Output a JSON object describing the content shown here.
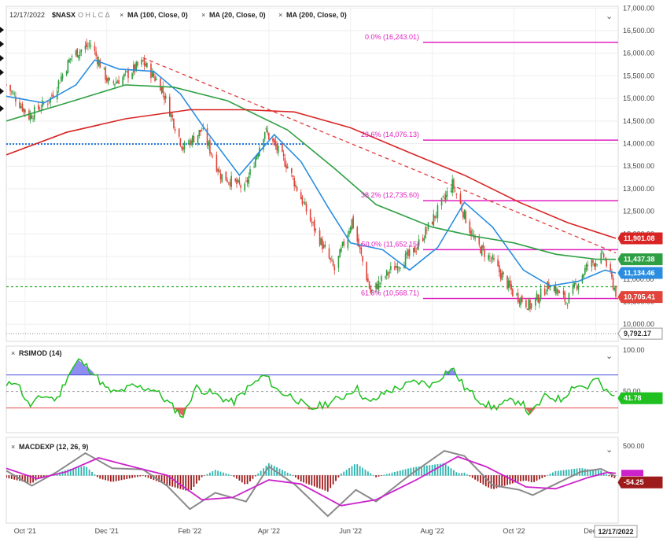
{
  "header": {
    "date": "12/17/2022",
    "symbol": "$NASX",
    "ohlc": "O H L C Δ",
    "studies": [
      "MA (100, Close, 0)",
      "MA (20, Close, 0)",
      "MA (200, Close, 0)"
    ],
    "collapse": "⌄"
  },
  "colors": {
    "candle_up": "#2e9e3e",
    "candle_down": "#e0443a",
    "ma100": "#2ea043",
    "ma20": "#2a8de0",
    "ma200": "#d92424",
    "fib": "#e020c0",
    "trend": "#e03a3a",
    "rsi": "#1fc01f",
    "macd": "#8a8a8a",
    "signal": "#cc22cc",
    "hist_up": "#2ab5b0",
    "hist_down": "#9e1b1b"
  },
  "chart_data": [
    {
      "type": "candlestick",
      "title": "$NASX",
      "x_ticks": [
        "Oct '21",
        "Dec '21",
        "Feb '22",
        "Apr '22",
        "Jun '22",
        "Aug '22",
        "Oct '22",
        "Dec '22"
      ],
      "y_ticks": [
        "17,000.00",
        "16,500.00",
        "16,000.00",
        "15,500.00",
        "15,000.00",
        "14,500.00",
        "14,000.00",
        "13,500.00",
        "13,000.00",
        "12,500.00",
        "12,000.00",
        "11,500.00",
        "11,000.00",
        "10,500.00",
        "10,000.00"
      ],
      "ylim": [
        9620,
        17040
      ],
      "close_path": [
        {
          "d": "2021-09-17",
          "v": 15300
        },
        {
          "d": "2021-10-04",
          "v": 14600
        },
        {
          "d": "2021-10-20",
          "v": 15000
        },
        {
          "d": "2021-11-05",
          "v": 15950
        },
        {
          "d": "2021-11-19",
          "v": 16200
        },
        {
          "d": "2021-12-03",
          "v": 15300
        },
        {
          "d": "2021-12-15",
          "v": 15500
        },
        {
          "d": "2021-12-28",
          "v": 15800
        },
        {
          "d": "2022-01-10",
          "v": 15300
        },
        {
          "d": "2022-01-27",
          "v": 13900
        },
        {
          "d": "2022-02-10",
          "v": 14300
        },
        {
          "d": "2022-02-24",
          "v": 13300
        },
        {
          "d": "2022-03-14",
          "v": 13000
        },
        {
          "d": "2022-03-29",
          "v": 14300
        },
        {
          "d": "2022-04-15",
          "v": 13500
        },
        {
          "d": "2022-05-02",
          "v": 12300
        },
        {
          "d": "2022-05-20",
          "v": 11200
        },
        {
          "d": "2022-06-02",
          "v": 12300
        },
        {
          "d": "2022-06-16",
          "v": 10700
        },
        {
          "d": "2022-07-01",
          "v": 11200
        },
        {
          "d": "2022-07-18",
          "v": 11600
        },
        {
          "d": "2022-08-01",
          "v": 12300
        },
        {
          "d": "2022-08-16",
          "v": 13100
        },
        {
          "d": "2022-09-02",
          "v": 11800
        },
        {
          "d": "2022-09-15",
          "v": 11400
        },
        {
          "d": "2022-09-30",
          "v": 10700
        },
        {
          "d": "2022-10-13",
          "v": 10400
        },
        {
          "d": "2022-10-28",
          "v": 10900
        },
        {
          "d": "2022-11-09",
          "v": 10500
        },
        {
          "d": "2022-11-25",
          "v": 11300
        },
        {
          "d": "2022-12-07",
          "v": 11500
        },
        {
          "d": "2022-12-16",
          "v": 10705
        }
      ],
      "series": [
        {
          "name": "MA (20, Close, 0)",
          "points": [
            {
              "d": "2021-09-17",
              "v": 15050
            },
            {
              "d": "2021-10-15",
              "v": 14900
            },
            {
              "d": "2021-11-08",
              "v": 15300
            },
            {
              "d": "2021-11-22",
              "v": 15850
            },
            {
              "d": "2021-12-10",
              "v": 15650
            },
            {
              "d": "2022-01-05",
              "v": 15600
            },
            {
              "d": "2022-01-25",
              "v": 15100
            },
            {
              "d": "2022-02-14",
              "v": 14250
            },
            {
              "d": "2022-03-10",
              "v": 13300
            },
            {
              "d": "2022-04-05",
              "v": 14200
            },
            {
              "d": "2022-04-25",
              "v": 13600
            },
            {
              "d": "2022-05-15",
              "v": 12600
            },
            {
              "d": "2022-06-01",
              "v": 11800
            },
            {
              "d": "2022-06-25",
              "v": 11650
            },
            {
              "d": "2022-07-15",
              "v": 11200
            },
            {
              "d": "2022-08-05",
              "v": 11700
            },
            {
              "d": "2022-08-25",
              "v": 12700
            },
            {
              "d": "2022-09-15",
              "v": 12150
            },
            {
              "d": "2022-10-08",
              "v": 11200
            },
            {
              "d": "2022-10-28",
              "v": 10850
            },
            {
              "d": "2022-11-18",
              "v": 10950
            },
            {
              "d": "2022-12-08",
              "v": 11200
            },
            {
              "d": "2022-12-16",
              "v": 11134
            }
          ]
        },
        {
          "name": "MA (100, Close, 0)",
          "points": [
            {
              "d": "2021-09-17",
              "v": 14500
            },
            {
              "d": "2021-11-01",
              "v": 14900
            },
            {
              "d": "2021-12-15",
              "v": 15300
            },
            {
              "d": "2022-01-20",
              "v": 15250
            },
            {
              "d": "2022-03-01",
              "v": 14950
            },
            {
              "d": "2022-04-15",
              "v": 14300
            },
            {
              "d": "2022-05-20",
              "v": 13450
            },
            {
              "d": "2022-06-20",
              "v": 12650
            },
            {
              "d": "2022-08-01",
              "v": 12150
            },
            {
              "d": "2022-09-01",
              "v": 11950
            },
            {
              "d": "2022-10-01",
              "v": 11800
            },
            {
              "d": "2022-11-01",
              "v": 11550
            },
            {
              "d": "2022-12-01",
              "v": 11440
            },
            {
              "d": "2022-12-16",
              "v": 11437
            }
          ]
        },
        {
          "name": "MA (200, Close, 0)",
          "points": [
            {
              "d": "2021-09-17",
              "v": 13750
            },
            {
              "d": "2021-11-01",
              "v": 14250
            },
            {
              "d": "2021-12-15",
              "v": 14550
            },
            {
              "d": "2022-02-01",
              "v": 14750
            },
            {
              "d": "2022-03-15",
              "v": 14750
            },
            {
              "d": "2022-04-20",
              "v": 14700
            },
            {
              "d": "2022-06-01",
              "v": 14350
            },
            {
              "d": "2022-07-15",
              "v": 13800
            },
            {
              "d": "2022-08-25",
              "v": 13300
            },
            {
              "d": "2022-10-05",
              "v": 12700
            },
            {
              "d": "2022-11-10",
              "v": 12250
            },
            {
              "d": "2022-12-16",
              "v": 11901
            }
          ]
        }
      ],
      "fib_levels": [
        {
          "label": "0.0% (16,243.01)",
          "value": 16243.01
        },
        {
          "label": "23.6% (14,076.13)",
          "value": 14076.13
        },
        {
          "label": "38.2% (12,735.60)",
          "value": 12735.6
        },
        {
          "label": "50.0% (11,652.15)",
          "value": 11652.15
        },
        {
          "label": "61.8% (10,568.71)",
          "value": 10568.71
        }
      ],
      "horizontal_lines": [
        {
          "value": 13990,
          "style": "dotted-blue"
        },
        {
          "value": 10830,
          "style": "dashed-green"
        },
        {
          "value": 9792.17,
          "style": "dotted-gray"
        }
      ],
      "trendline": [
        {
          "d": "2021-12-28",
          "v": 15900
        },
        {
          "d": "2022-12-16",
          "v": 11580
        }
      ],
      "value_tags": [
        {
          "label": "11,901.08",
          "value": 11901.08,
          "color": "#d92424"
        },
        {
          "label": "11,437.38",
          "value": 11437.38,
          "color": "#2ea043"
        },
        {
          "label": "11,134.46",
          "value": 11134.46,
          "color": "#2a8de0"
        },
        {
          "label": "10,705.41",
          "value": 10705.41,
          "color": "#e0443a"
        },
        {
          "label": "9,792.17",
          "value": 9792.17,
          "color": "#ffffff"
        }
      ]
    },
    {
      "type": "line",
      "title": "RSIMOD (14)",
      "y_ticks": [
        "100.00",
        "50.00"
      ],
      "ylim": [
        0,
        105
      ],
      "overbought": 70,
      "midline": 50,
      "oversold": 30,
      "value_tag": "41.78",
      "points": [
        {
          "d": "2021-09-17",
          "v": 55
        },
        {
          "d": "2021-09-24",
          "v": 65
        },
        {
          "d": "2021-10-04",
          "v": 32
        },
        {
          "d": "2021-10-15",
          "v": 45
        },
        {
          "d": "2021-10-25",
          "v": 40
        },
        {
          "d": "2021-11-02",
          "v": 70
        },
        {
          "d": "2021-11-10",
          "v": 88
        },
        {
          "d": "2021-11-20",
          "v": 75
        },
        {
          "d": "2021-12-01",
          "v": 52
        },
        {
          "d": "2021-12-08",
          "v": 48
        },
        {
          "d": "2021-12-20",
          "v": 56
        },
        {
          "d": "2022-01-05",
          "v": 53
        },
        {
          "d": "2022-01-20",
          "v": 30
        },
        {
          "d": "2022-01-27",
          "v": 20
        },
        {
          "d": "2022-02-05",
          "v": 55
        },
        {
          "d": "2022-02-20",
          "v": 46
        },
        {
          "d": "2022-03-05",
          "v": 36
        },
        {
          "d": "2022-03-15",
          "v": 52
        },
        {
          "d": "2022-03-29",
          "v": 70
        },
        {
          "d": "2022-04-08",
          "v": 50
        },
        {
          "d": "2022-04-20",
          "v": 43
        },
        {
          "d": "2022-05-01",
          "v": 28
        },
        {
          "d": "2022-05-10",
          "v": 33
        },
        {
          "d": "2022-05-25",
          "v": 42
        },
        {
          "d": "2022-06-05",
          "v": 55
        },
        {
          "d": "2022-06-15",
          "v": 35
        },
        {
          "d": "2022-06-28",
          "v": 50
        },
        {
          "d": "2022-07-10",
          "v": 56
        },
        {
          "d": "2022-07-20",
          "v": 62
        },
        {
          "d": "2022-08-01",
          "v": 58
        },
        {
          "d": "2022-08-10",
          "v": 72
        },
        {
          "d": "2022-08-16",
          "v": 78
        },
        {
          "d": "2022-08-25",
          "v": 55
        },
        {
          "d": "2022-09-05",
          "v": 40
        },
        {
          "d": "2022-09-15",
          "v": 30
        },
        {
          "d": "2022-09-25",
          "v": 36
        },
        {
          "d": "2022-10-05",
          "v": 40
        },
        {
          "d": "2022-10-13",
          "v": 22
        },
        {
          "d": "2022-10-25",
          "v": 45
        },
        {
          "d": "2022-11-05",
          "v": 40
        },
        {
          "d": "2022-11-15",
          "v": 58
        },
        {
          "d": "2022-11-25",
          "v": 55
        },
        {
          "d": "2022-12-01",
          "v": 66
        },
        {
          "d": "2022-12-07",
          "v": 52
        },
        {
          "d": "2022-12-16",
          "v": 41.78
        }
      ]
    },
    {
      "type": "line",
      "title": "MACDEXP (12, 26, 9)",
      "y_ticks": [
        "500.00"
      ],
      "ylim": [
        -820,
        650
      ],
      "value_tag": "-54.25",
      "series": [
        {
          "name": "MACD",
          "points": [
            {
              "d": "2021-09-17",
              "v": 80
            },
            {
              "d": "2021-10-06",
              "v": -180
            },
            {
              "d": "2021-10-25",
              "v": 60
            },
            {
              "d": "2021-11-15",
              "v": 380
            },
            {
              "d": "2021-12-05",
              "v": 120
            },
            {
              "d": "2021-12-28",
              "v": 100
            },
            {
              "d": "2022-01-15",
              "v": -180
            },
            {
              "d": "2022-02-01",
              "v": -580
            },
            {
              "d": "2022-02-20",
              "v": -300
            },
            {
              "d": "2022-03-15",
              "v": -450
            },
            {
              "d": "2022-04-01",
              "v": 150
            },
            {
              "d": "2022-04-20",
              "v": -150
            },
            {
              "d": "2022-05-15",
              "v": -700
            },
            {
              "d": "2022-06-05",
              "v": -250
            },
            {
              "d": "2022-06-20",
              "v": -450
            },
            {
              "d": "2022-07-15",
              "v": 0
            },
            {
              "d": "2022-08-10",
              "v": 420
            },
            {
              "d": "2022-08-25",
              "v": 330
            },
            {
              "d": "2022-09-15",
              "v": -170
            },
            {
              "d": "2022-10-05",
              "v": -250
            },
            {
              "d": "2022-10-15",
              "v": -340
            },
            {
              "d": "2022-11-01",
              "v": -150
            },
            {
              "d": "2022-11-20",
              "v": 60
            },
            {
              "d": "2022-12-05",
              "v": 110
            },
            {
              "d": "2022-12-16",
              "v": -20
            }
          ]
        },
        {
          "name": "Signal",
          "points": [
            {
              "d": "2021-09-17",
              "v": 120
            },
            {
              "d": "2021-10-10",
              "v": -60
            },
            {
              "d": "2021-11-01",
              "v": 60
            },
            {
              "d": "2021-11-25",
              "v": 300
            },
            {
              "d": "2021-12-20",
              "v": 150
            },
            {
              "d": "2022-01-15",
              "v": 0
            },
            {
              "d": "2022-02-10",
              "v": -420
            },
            {
              "d": "2022-03-05",
              "v": -380
            },
            {
              "d": "2022-04-01",
              "v": -80
            },
            {
              "d": "2022-04-25",
              "v": -150
            },
            {
              "d": "2022-05-25",
              "v": -520
            },
            {
              "d": "2022-06-20",
              "v": -420
            },
            {
              "d": "2022-07-20",
              "v": -80
            },
            {
              "d": "2022-08-20",
              "v": 320
            },
            {
              "d": "2022-09-10",
              "v": 150
            },
            {
              "d": "2022-10-10",
              "v": -200
            },
            {
              "d": "2022-11-01",
              "v": -230
            },
            {
              "d": "2022-11-25",
              "v": -40
            },
            {
              "d": "2022-12-10",
              "v": 50
            },
            {
              "d": "2022-12-16",
              "v": 35
            }
          ]
        }
      ]
    }
  ]
}
